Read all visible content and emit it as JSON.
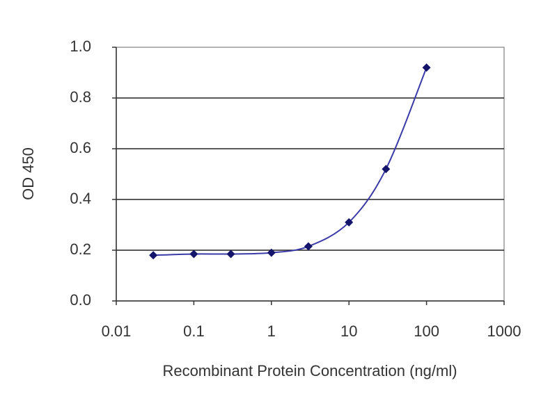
{
  "chart_data": {
    "type": "scatter",
    "x": [
      0.03,
      0.1,
      0.3,
      1,
      3,
      10,
      30,
      100
    ],
    "values": [
      0.18,
      0.185,
      0.185,
      0.19,
      0.215,
      0.31,
      0.52,
      0.92
    ],
    "color": "#3a3aa8",
    "marker_color": "#14146a",
    "xlabel": "Recombinant Protein Concentration (ng/ml)",
    "ylabel": "OD 450",
    "xscale": "log",
    "xlim": [
      0.01,
      1000
    ],
    "xticks": [
      0.01,
      0.1,
      1,
      10,
      100,
      1000
    ],
    "ylim": [
      0,
      1
    ],
    "yticks": [
      {
        "value": 0,
        "label": "0.0"
      },
      0.2,
      0.4,
      0.6,
      0.8,
      {
        "value": 1,
        "label": "1.0"
      }
    ],
    "grid": true
  }
}
